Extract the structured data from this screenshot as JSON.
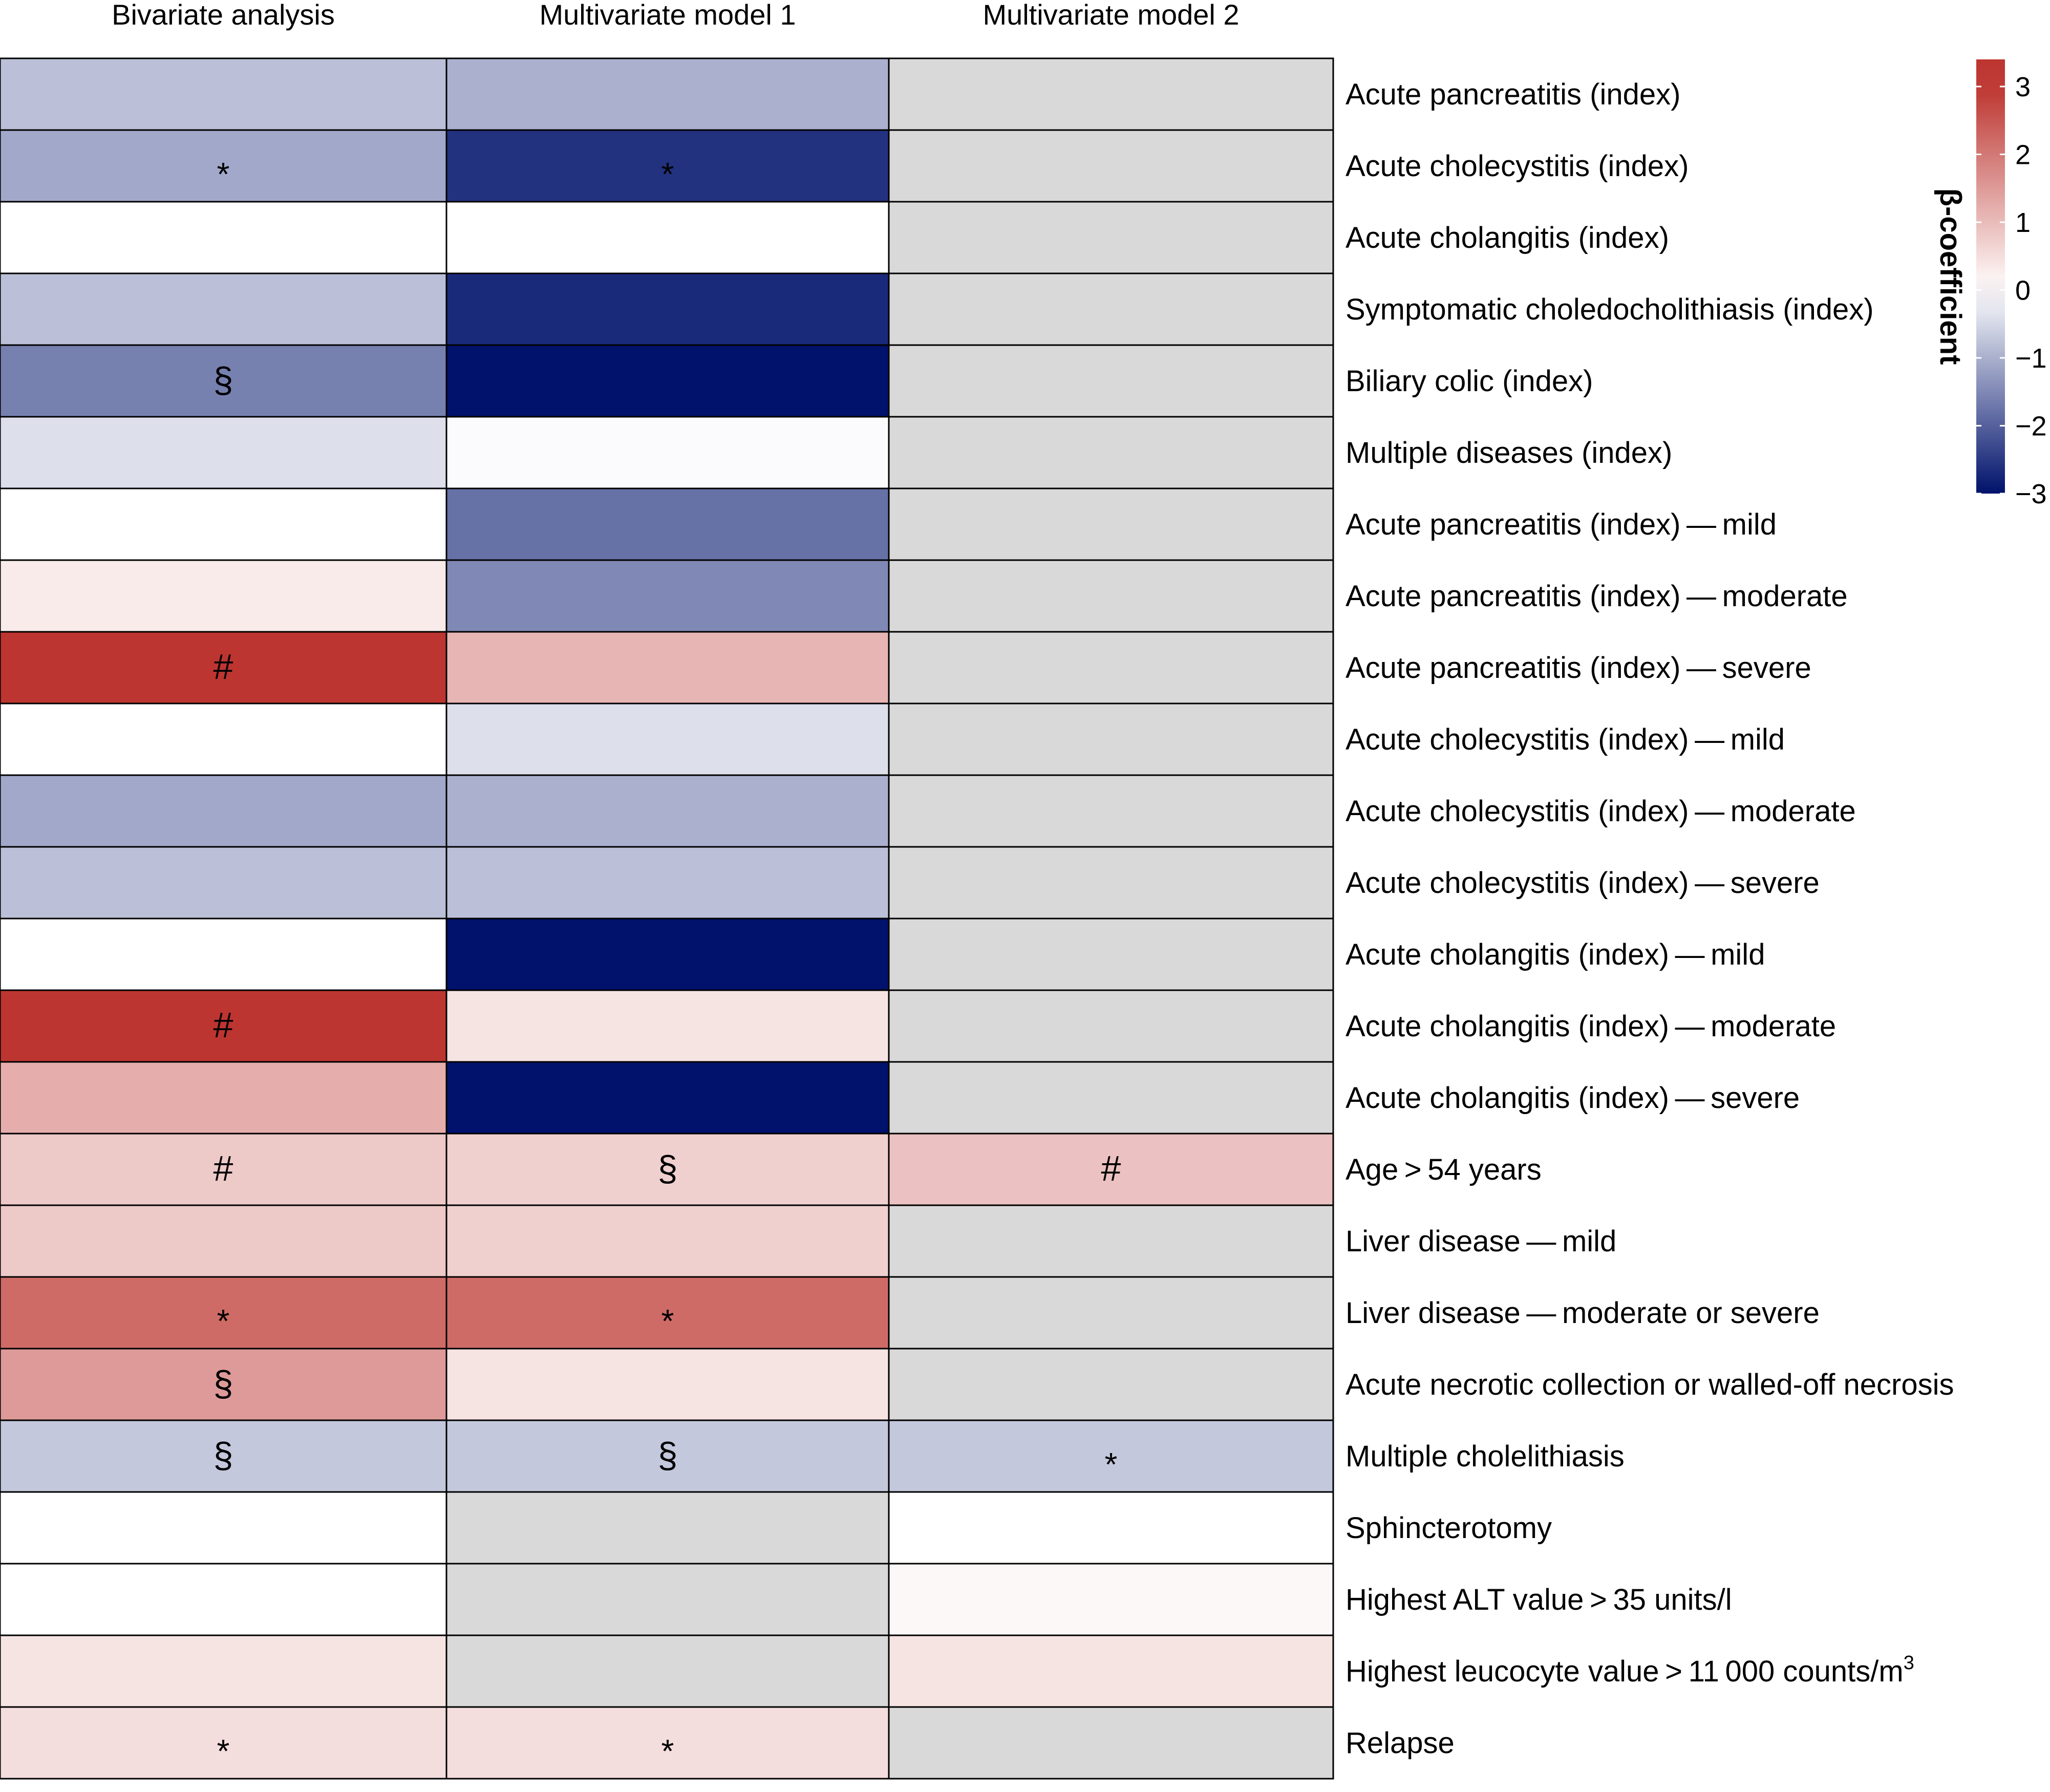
{
  "chart_data": {
    "type": "heatmap",
    "columns": [
      "Bivariate analysis",
      "Multivariate model 1",
      "Multivariate model 2"
    ],
    "rows": [
      "Acute pancreatitis (index)",
      "Acute cholecystitis (index)",
      "Acute cholangitis (index)",
      "Symptomatic choledocholithiasis (index)",
      "Biliary colic (index)",
      "Multiple diseases (index)",
      "Acute pancreatitis (index) — mild",
      "Acute pancreatitis (index) — moderate",
      "Acute pancreatitis (index) — severe",
      "Acute cholecystitis (index) — mild",
      "Acute cholecystitis (index) — moderate",
      "Acute cholecystitis (index) — severe",
      "Acute cholangitis (index) — mild",
      "Acute cholangitis (index) — moderate",
      "Acute cholangitis (index) — severe",
      "Age > 54 years",
      "Liver disease — mild",
      "Liver disease — moderate or severe",
      "Acute necrotic collection or walled-off necrosis",
      "Multiple cholelithiasis",
      "Sphincterotomy",
      "Highest ALT value > 35 units/l",
      "Highest leucocyte value > 11 000 counts/m",
      "Relapse"
    ],
    "row_superscripts": {
      "22": "3"
    },
    "values": [
      [
        -0.8,
        -1.0,
        null
      ],
      [
        -1.1,
        -2.6,
        null
      ],
      [
        0.0,
        0.0,
        null
      ],
      [
        -0.8,
        -2.7,
        null
      ],
      [
        -1.6,
        -3.0,
        null
      ],
      [
        -0.4,
        -0.05,
        null
      ],
      [
        0.0,
        -1.8,
        null
      ],
      [
        0.3,
        -1.5,
        null
      ],
      [
        3.0,
        1.1,
        null
      ],
      [
        0.0,
        -0.4,
        null
      ],
      [
        -1.1,
        -1.0,
        null
      ],
      [
        -0.8,
        -0.8,
        null
      ],
      [
        0.0,
        -3.0,
        null
      ],
      [
        3.0,
        0.4,
        null
      ],
      [
        1.2,
        -3.0,
        null
      ],
      [
        0.8,
        0.7,
        0.9
      ],
      [
        0.8,
        0.7,
        null
      ],
      [
        2.2,
        2.2,
        null
      ],
      [
        1.5,
        0.4,
        null
      ],
      [
        -0.7,
        -0.7,
        -0.7
      ],
      [
        0.0,
        null,
        0.0
      ],
      [
        0.0,
        null,
        0.1
      ],
      [
        0.4,
        null,
        0.4
      ],
      [
        0.5,
        0.5,
        null
      ]
    ],
    "markers": [
      [
        "",
        "",
        ""
      ],
      [
        "*",
        "*",
        ""
      ],
      [
        "",
        "",
        ""
      ],
      [
        "",
        "",
        ""
      ],
      [
        "§",
        "",
        ""
      ],
      [
        "",
        "",
        ""
      ],
      [
        "",
        "",
        ""
      ],
      [
        "",
        "",
        ""
      ],
      [
        "#",
        "",
        ""
      ],
      [
        "",
        "",
        ""
      ],
      [
        "",
        "",
        ""
      ],
      [
        "",
        "",
        ""
      ],
      [
        "",
        "",
        ""
      ],
      [
        "#",
        "",
        ""
      ],
      [
        "",
        "",
        ""
      ],
      [
        "#",
        "§",
        "#"
      ],
      [
        "",
        "",
        ""
      ],
      [
        "*",
        "*",
        ""
      ],
      [
        "§",
        "",
        ""
      ],
      [
        "§",
        "§",
        "*"
      ],
      [
        "",
        "",
        ""
      ],
      [
        "",
        "",
        ""
      ],
      [
        "",
        "",
        ""
      ],
      [
        "*",
        "*",
        ""
      ]
    ],
    "missing_color": "#d9d9d9",
    "colorbar": {
      "title": "β-coefficient",
      "range": [
        -3,
        3.4
      ],
      "ticks": [
        3,
        2,
        1,
        0,
        -1,
        -2,
        -3
      ],
      "tick_labels": [
        "3",
        "2",
        "1",
        "0",
        "−1",
        "−2",
        "−3"
      ],
      "low_color": "#00126b",
      "mid_color": "#ffffff",
      "high_color": "#bd3530"
    }
  }
}
